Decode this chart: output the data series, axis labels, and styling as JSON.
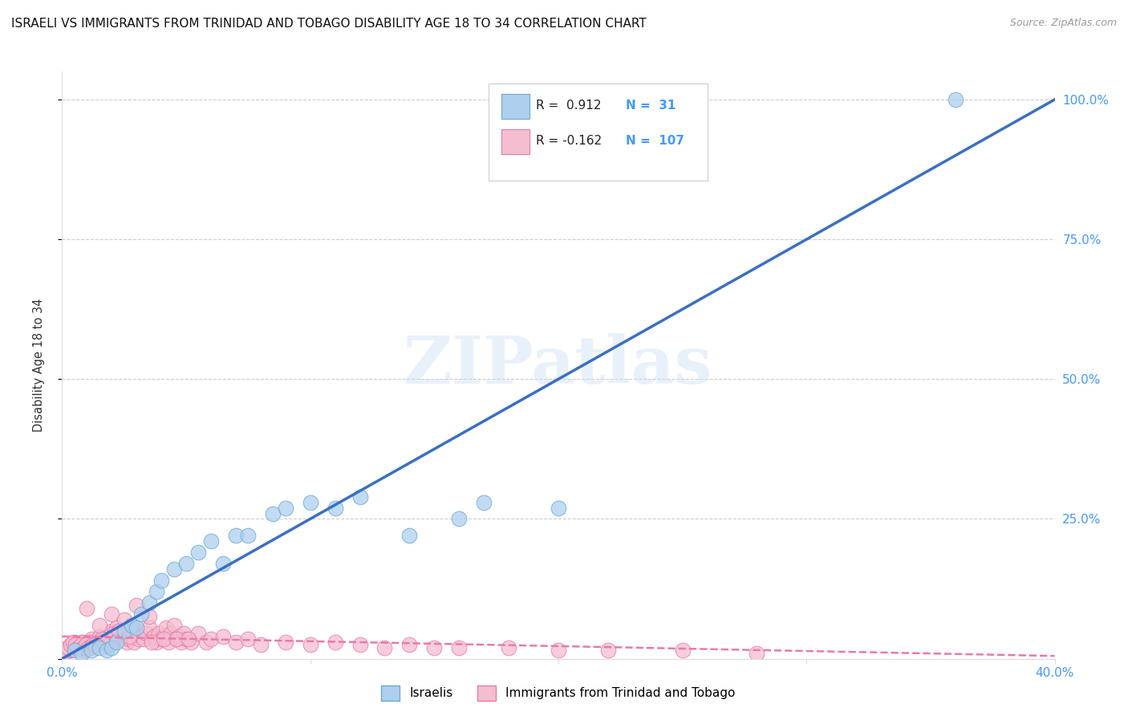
{
  "title": "ISRAELI VS IMMIGRANTS FROM TRINIDAD AND TOBAGO DISABILITY AGE 18 TO 34 CORRELATION CHART",
  "source": "Source: ZipAtlas.com",
  "ylabel": "Disability Age 18 to 34",
  "xlim": [
    0.0,
    40.0
  ],
  "ylim": [
    0.0,
    105.0
  ],
  "x_ticks": [
    0.0,
    10.0,
    20.0,
    30.0,
    40.0
  ],
  "x_tick_labels": [
    "0.0%",
    "",
    "",
    "",
    "40.0%"
  ],
  "y_tick_positions": [
    0.0,
    25.0,
    50.0,
    75.0,
    100.0
  ],
  "y_tick_labels": [
    "",
    "25.0%",
    "50.0%",
    "75.0%",
    "100.0%"
  ],
  "israeli_R": 0.912,
  "israeli_N": 31,
  "tt_R": -0.162,
  "tt_N": 107,
  "israeli_color": "#aecfee",
  "israeli_edge_color": "#6aaad4",
  "tt_color": "#f5bdd0",
  "tt_edge_color": "#e87aaa",
  "trend_israeli_color": "#3a6fc4",
  "trend_tt_color": "#e87aaa",
  "watermark_text": "ZIPatlas",
  "background_color": "#ffffff",
  "grid_color": "#cccccc",
  "title_fontsize": 11,
  "tick_color": "#4499ff",
  "israeli_scatter_x": [
    0.5,
    0.8,
    1.2,
    1.5,
    1.8,
    2.0,
    2.2,
    2.5,
    2.8,
    3.0,
    3.2,
    3.5,
    3.8,
    4.0,
    4.5,
    5.0,
    5.5,
    6.0,
    6.5,
    7.0,
    7.5,
    8.5,
    9.0,
    10.0,
    11.0,
    12.0,
    14.0,
    16.0,
    17.0,
    20.0,
    36.0
  ],
  "israeli_scatter_y": [
    1.5,
    1.0,
    1.5,
    2.0,
    1.5,
    2.0,
    3.0,
    5.0,
    6.0,
    5.5,
    8.0,
    10.0,
    12.0,
    14.0,
    16.0,
    17.0,
    19.0,
    21.0,
    17.0,
    22.0,
    22.0,
    26.0,
    27.0,
    28.0,
    27.0,
    29.0,
    22.0,
    25.0,
    28.0,
    27.0,
    100.0
  ],
  "tt_scatter_x": [
    0.2,
    0.3,
    0.4,
    0.5,
    0.6,
    0.7,
    0.8,
    0.9,
    1.0,
    1.1,
    1.2,
    1.3,
    1.4,
    1.5,
    1.6,
    1.7,
    1.8,
    1.9,
    2.0,
    2.1,
    2.2,
    2.3,
    2.4,
    2.5,
    2.6,
    2.7,
    2.8,
    2.9,
    3.0,
    3.1,
    3.2,
    3.3,
    3.4,
    3.5,
    3.6,
    3.7,
    3.8,
    3.9,
    4.0,
    4.1,
    4.2,
    4.3,
    4.4,
    4.5,
    4.6,
    4.7,
    4.8,
    4.9,
    5.0,
    5.2,
    5.5,
    5.8,
    6.0,
    6.5,
    7.0,
    7.5,
    8.0,
    9.0,
    10.0,
    11.0,
    12.0,
    13.0,
    14.0,
    15.0,
    16.0,
    18.0,
    20.0,
    22.0,
    25.0,
    28.0,
    1.0,
    1.5,
    2.0,
    2.5,
    3.0,
    3.5,
    0.3,
    0.5,
    0.7,
    0.8,
    0.4,
    0.6,
    1.1,
    1.3,
    1.6,
    2.1,
    2.3,
    2.7,
    0.2,
    0.9,
    3.6,
    4.1,
    4.6,
    5.1,
    0.15,
    0.25,
    0.35,
    0.45,
    0.55,
    0.65,
    0.75,
    0.85,
    0.95,
    1.05,
    1.15,
    1.25,
    1.35
  ],
  "tt_scatter_y": [
    2.0,
    1.5,
    2.5,
    3.0,
    2.0,
    2.5,
    3.0,
    1.5,
    2.0,
    2.5,
    3.5,
    3.0,
    2.5,
    4.0,
    3.0,
    3.5,
    4.0,
    2.5,
    5.0,
    3.0,
    5.5,
    3.5,
    4.0,
    4.5,
    3.0,
    3.5,
    4.0,
    3.0,
    5.0,
    3.5,
    4.0,
    3.5,
    4.5,
    5.5,
    3.5,
    4.0,
    3.0,
    4.5,
    3.5,
    4.0,
    5.5,
    3.0,
    4.5,
    6.0,
    3.5,
    4.0,
    3.0,
    4.5,
    3.5,
    3.0,
    4.5,
    3.0,
    3.5,
    4.0,
    3.0,
    3.5,
    2.5,
    3.0,
    2.5,
    3.0,
    2.5,
    2.0,
    2.5,
    2.0,
    2.0,
    2.0,
    1.5,
    1.5,
    1.5,
    1.0,
    9.0,
    6.0,
    8.0,
    7.0,
    9.5,
    7.5,
    1.5,
    2.0,
    2.5,
    3.0,
    2.0,
    2.5,
    3.0,
    2.5,
    3.5,
    4.5,
    5.0,
    4.0,
    1.5,
    2.0,
    3.0,
    3.5,
    3.5,
    3.5,
    1.5,
    2.0,
    2.5,
    3.0,
    2.5,
    2.0,
    2.5,
    2.0,
    2.5,
    2.0,
    2.0,
    2.5,
    2.5
  ],
  "trend_il_x0": 0.0,
  "trend_il_y0": 0.0,
  "trend_il_x1": 40.0,
  "trend_il_y1": 100.0,
  "trend_tt_x0": 0.0,
  "trend_tt_y0": 4.0,
  "trend_tt_x1": 40.0,
  "trend_tt_y1": 0.5
}
